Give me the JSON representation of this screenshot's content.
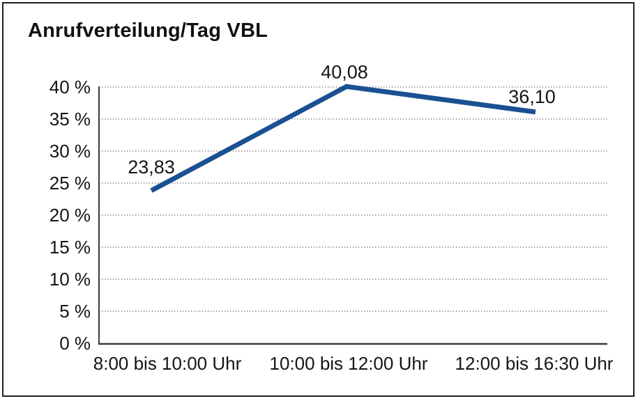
{
  "frame": {
    "border_color": "#1f1f1f",
    "background": "#ffffff"
  },
  "chart_data": {
    "type": "line",
    "title": "Anrufverteilung/Tag VBL",
    "categories": [
      "8:00 bis 10:00 Uhr",
      "10:00 bis 12:00 Uhr",
      "12:00 bis 16:30 Uhr"
    ],
    "values": [
      23.83,
      40.08,
      36.1
    ],
    "point_labels": [
      "23,83",
      "40,08",
      "36,10"
    ],
    "y_ticks": [
      "0 %",
      "5 %",
      "10 %",
      "15 %",
      "20 %",
      "25 %",
      "30 %",
      "35 %",
      "40 %"
    ],
    "ylim": [
      0,
      40
    ],
    "y_step": 5,
    "xlabel": "",
    "ylabel": "",
    "grid": "horizontal-dotted",
    "legend_position": "none",
    "line_color": "#1B5193",
    "gridline_color": "#5a5a5a",
    "axis_color": "#3a3a3a",
    "text_color": "#151515"
  }
}
